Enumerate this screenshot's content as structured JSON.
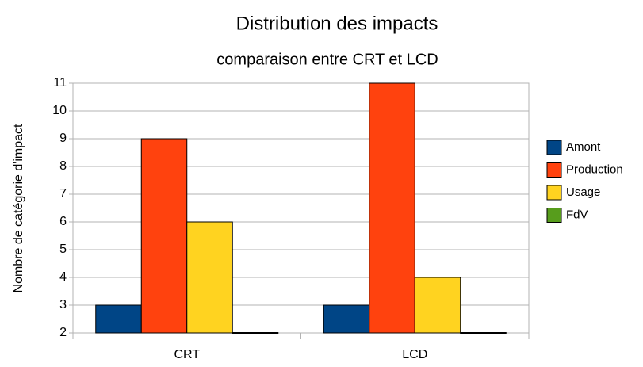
{
  "chart_data": {
    "type": "bar",
    "title": "Distribution des impacts",
    "subtitle": "comparaison entre CRT et LCD",
    "y_label": "Nombre de catégorie d'impact",
    "categories": [
      "CRT",
      "LCD"
    ],
    "series": [
      {
        "name": "Amont",
        "color": "#004586",
        "values": [
          3,
          3
        ]
      },
      {
        "name": "Production",
        "color": "#ff420e",
        "values": [
          9,
          11
        ]
      },
      {
        "name": "Usage",
        "color": "#ffd320",
        "values": [
          6,
          4
        ]
      },
      {
        "name": "FdV",
        "color": "#579d1c",
        "values": [
          2,
          2
        ]
      }
    ],
    "ylim": [
      2,
      11
    ],
    "yticks": [
      2,
      3,
      4,
      5,
      6,
      7,
      8,
      9,
      10,
      11
    ],
    "grid": true,
    "legend": "right"
  }
}
